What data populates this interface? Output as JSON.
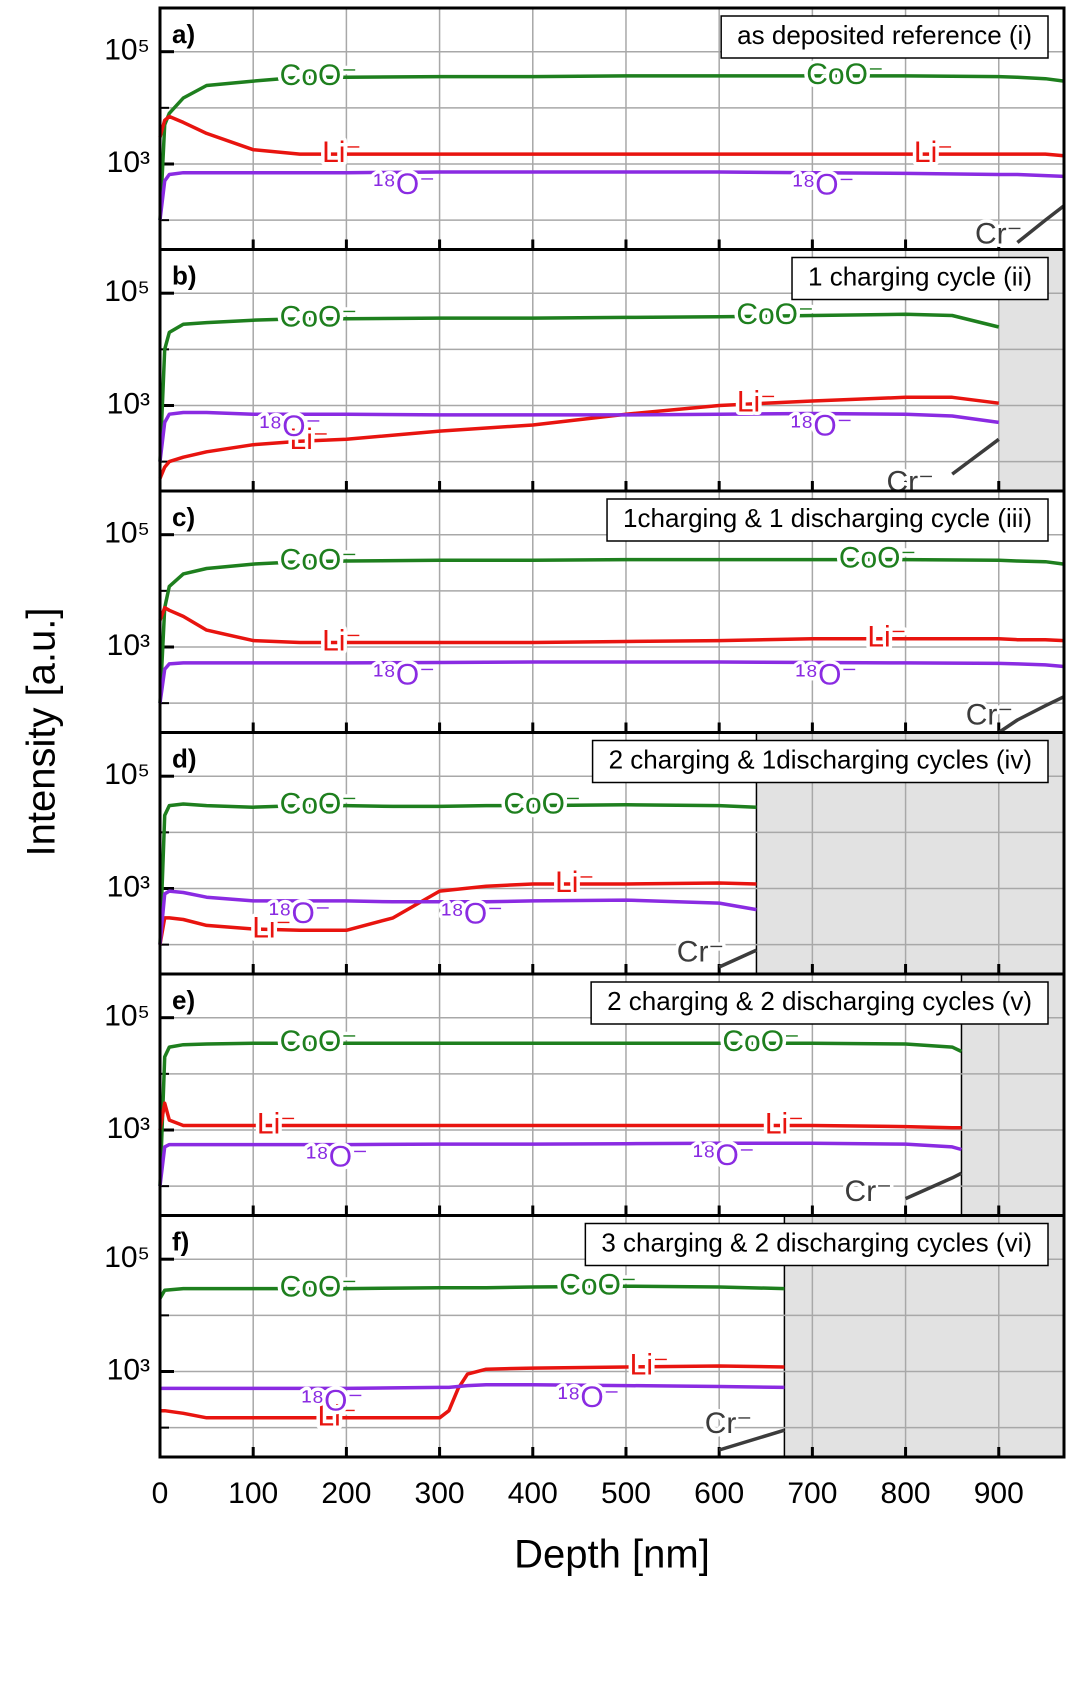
{
  "ylabel": "Intensity [a.u.]",
  "chart_data": [
    {
      "type": "line",
      "label": "a)",
      "title": "as deposited reference (i)",
      "xlim": [
        0,
        970
      ],
      "xticks": [
        0,
        100,
        200,
        300,
        400,
        500,
        600,
        700,
        800,
        900
      ],
      "ylim": [
        30,
        600000
      ],
      "yticks": [
        {
          "value": 1000,
          "label": "10³"
        },
        {
          "value": 100000,
          "label": "10⁵"
        }
      ],
      "minor_yticks": [
        100,
        10000
      ],
      "log_y": true,
      "grid": true,
      "shaded_from": null,
      "x": [
        0,
        5,
        10,
        25,
        50,
        100,
        150,
        200,
        300,
        400,
        500,
        600,
        700,
        800,
        900,
        920,
        950,
        970
      ],
      "series": [
        {
          "name": "CoO⁻",
          "color": "#1e7f1e",
          "values": [
            100,
            5000,
            8000,
            15000,
            25000,
            30000,
            35000,
            35000,
            36000,
            36000,
            37000,
            37000,
            37000,
            37000,
            36000,
            35000,
            33000,
            30000
          ]
        },
        {
          "name": "Li⁻",
          "color": "#e8140f",
          "values": [
            3000,
            6000,
            7000,
            5500,
            3500,
            1800,
            1500,
            1500,
            1500,
            1500,
            1500,
            1500,
            1500,
            1500,
            1500,
            1500,
            1500,
            1400
          ]
        },
        {
          "name": "¹⁸O⁻",
          "color": "#8a2be2",
          "values": [
            100,
            500,
            650,
            700,
            700,
            700,
            700,
            700,
            720,
            720,
            720,
            720,
            700,
            680,
            650,
            650,
            620,
            600
          ]
        },
        {
          "name": "Cr⁻",
          "color": "#3c3c3c",
          "values": [
            null,
            null,
            null,
            null,
            null,
            null,
            null,
            null,
            null,
            null,
            null,
            null,
            null,
            null,
            null,
            40,
            100,
            180
          ]
        }
      ]
    },
    {
      "type": "line",
      "label": "b)",
      "title": "1 charging cycle (ii)",
      "xlim": [
        0,
        970
      ],
      "xticks": [
        0,
        100,
        200,
        300,
        400,
        500,
        600,
        700,
        800,
        900
      ],
      "ylim": [
        30,
        600000
      ],
      "yticks": [
        {
          "value": 1000,
          "label": "10³"
        },
        {
          "value": 100000,
          "label": "10⁵"
        }
      ],
      "minor_yticks": [
        100,
        10000
      ],
      "log_y": true,
      "grid": true,
      "shaded_from": 900,
      "x": [
        0,
        5,
        10,
        25,
        50,
        100,
        150,
        200,
        300,
        400,
        500,
        600,
        700,
        800,
        850,
        900
      ],
      "series": [
        {
          "name": "CoO⁻",
          "color": "#1e7f1e",
          "values": [
            100,
            10000,
            20000,
            28000,
            30000,
            33000,
            35000,
            35000,
            36000,
            36000,
            37000,
            38000,
            40000,
            42000,
            40000,
            25000
          ]
        },
        {
          "name": "Li⁻",
          "color": "#e8140f",
          "values": [
            50,
            80,
            100,
            120,
            150,
            200,
            230,
            250,
            350,
            450,
            700,
            1000,
            1200,
            1400,
            1400,
            1100
          ]
        },
        {
          "name": "¹⁸O⁻",
          "color": "#8a2be2",
          "values": [
            100,
            500,
            700,
            750,
            750,
            700,
            700,
            700,
            680,
            680,
            680,
            700,
            720,
            700,
            650,
            500
          ]
        },
        {
          "name": "Cr⁻",
          "color": "#3c3c3c",
          "values": [
            null,
            null,
            null,
            null,
            null,
            null,
            null,
            null,
            null,
            null,
            null,
            null,
            null,
            null,
            60,
            250
          ]
        }
      ]
    },
    {
      "type": "line",
      "label": "c)",
      "title": "1charging & 1 discharging cycle (iii)",
      "xlim": [
        0,
        970
      ],
      "xticks": [
        0,
        100,
        200,
        300,
        400,
        500,
        600,
        700,
        800,
        900
      ],
      "ylim": [
        30,
        600000
      ],
      "yticks": [
        {
          "value": 1000,
          "label": "10³"
        },
        {
          "value": 100000,
          "label": "10⁵"
        }
      ],
      "minor_yticks": [
        100,
        10000
      ],
      "log_y": true,
      "grid": true,
      "shaded_from": null,
      "x": [
        0,
        5,
        10,
        25,
        50,
        100,
        150,
        200,
        300,
        400,
        500,
        600,
        700,
        800,
        900,
        920,
        950,
        970
      ],
      "series": [
        {
          "name": "CoO⁻",
          "color": "#1e7f1e",
          "values": [
            100,
            5000,
            12000,
            20000,
            25000,
            30000,
            33000,
            34000,
            35000,
            35000,
            36000,
            36000,
            36000,
            36000,
            35000,
            34000,
            33000,
            30000
          ]
        },
        {
          "name": "Li⁻",
          "color": "#e8140f",
          "values": [
            3000,
            5000,
            4500,
            3500,
            2000,
            1300,
            1200,
            1200,
            1200,
            1200,
            1250,
            1300,
            1400,
            1400,
            1400,
            1350,
            1350,
            1300
          ]
        },
        {
          "name": "¹⁸O⁻",
          "color": "#8a2be2",
          "values": [
            100,
            400,
            500,
            520,
            520,
            520,
            520,
            520,
            530,
            540,
            540,
            540,
            530,
            520,
            510,
            500,
            480,
            450
          ]
        },
        {
          "name": "Cr⁻",
          "color": "#3c3c3c",
          "values": [
            null,
            null,
            null,
            null,
            null,
            null,
            null,
            null,
            null,
            null,
            null,
            null,
            null,
            null,
            30,
            50,
            90,
            130
          ]
        }
      ]
    },
    {
      "type": "line",
      "label": "d)",
      "title": "2 charging & 1discharging cycles (iv)",
      "xlim": [
        0,
        970
      ],
      "xticks": [
        0,
        100,
        200,
        300,
        400,
        500,
        600,
        700,
        800,
        900
      ],
      "ylim": [
        30,
        600000
      ],
      "yticks": [
        {
          "value": 1000,
          "label": "10³"
        },
        {
          "value": 100000,
          "label": "10⁵"
        }
      ],
      "minor_yticks": [
        100,
        10000
      ],
      "log_y": true,
      "grid": true,
      "shaded_from": 640,
      "x": [
        0,
        5,
        10,
        25,
        50,
        100,
        150,
        200,
        250,
        300,
        350,
        400,
        500,
        600,
        640
      ],
      "series": [
        {
          "name": "CoO⁻",
          "color": "#1e7f1e",
          "values": [
            100,
            20000,
            30000,
            32000,
            30000,
            28000,
            30000,
            30000,
            29000,
            29000,
            30000,
            30000,
            31000,
            30000,
            28000
          ]
        },
        {
          "name": "Li⁻",
          "color": "#e8140f",
          "values": [
            100,
            300,
            300,
            280,
            220,
            190,
            180,
            180,
            300,
            900,
            1100,
            1200,
            1200,
            1250,
            1200
          ]
        },
        {
          "name": "¹⁸O⁻",
          "color": "#8a2be2",
          "values": [
            100,
            800,
            900,
            850,
            700,
            600,
            600,
            600,
            580,
            580,
            580,
            600,
            620,
            550,
            420
          ]
        },
        {
          "name": "Cr⁻",
          "color": "#3c3c3c",
          "values": [
            null,
            null,
            null,
            null,
            null,
            null,
            null,
            null,
            null,
            null,
            null,
            null,
            null,
            40,
            80
          ]
        }
      ]
    },
    {
      "type": "line",
      "label": "e)",
      "title": "2 charging & 2 discharging cycles (v)",
      "xlim": [
        0,
        970
      ],
      "xticks": [
        0,
        100,
        200,
        300,
        400,
        500,
        600,
        700,
        800,
        900
      ],
      "ylim": [
        30,
        600000
      ],
      "yticks": [
        {
          "value": 1000,
          "label": "10³"
        },
        {
          "value": 100000,
          "label": "10⁵"
        }
      ],
      "minor_yticks": [
        100,
        10000
      ],
      "log_y": true,
      "grid": true,
      "shaded_from": 860,
      "x": [
        0,
        5,
        10,
        25,
        50,
        100,
        200,
        300,
        400,
        500,
        600,
        700,
        800,
        850,
        860
      ],
      "series": [
        {
          "name": "CoO⁻",
          "color": "#1e7f1e",
          "values": [
            100,
            20000,
            30000,
            33000,
            34000,
            35000,
            35000,
            35000,
            35000,
            35000,
            35000,
            35000,
            34000,
            30000,
            25000
          ]
        },
        {
          "name": "Li⁻",
          "color": "#e8140f",
          "values": [
            1000,
            3000,
            1500,
            1200,
            1200,
            1200,
            1200,
            1200,
            1200,
            1200,
            1200,
            1200,
            1150,
            1100,
            1100
          ]
        },
        {
          "name": "¹⁸O⁻",
          "color": "#8a2be2",
          "values": [
            100,
            500,
            550,
            550,
            550,
            550,
            550,
            560,
            560,
            570,
            580,
            580,
            560,
            500,
            450
          ]
        },
        {
          "name": "Cr⁻",
          "color": "#3c3c3c",
          "values": [
            null,
            null,
            null,
            null,
            null,
            null,
            null,
            null,
            null,
            null,
            null,
            null,
            60,
            140,
            170
          ]
        }
      ]
    },
    {
      "type": "line",
      "label": "f)",
      "title": "3 charging & 2 discharging cycles (vi)",
      "xlim": [
        0,
        970
      ],
      "xticks": [
        0,
        100,
        200,
        300,
        400,
        500,
        600,
        700,
        800,
        900
      ],
      "xlabel": "Depth [nm]",
      "ylim": [
        30,
        600000
      ],
      "yticks": [
        {
          "value": 1000,
          "label": "10³"
        },
        {
          "value": 100000,
          "label": "10⁵"
        }
      ],
      "minor_yticks": [
        100,
        10000
      ],
      "log_y": true,
      "grid": true,
      "shaded_from": 670,
      "x": [
        0,
        5,
        25,
        50,
        100,
        200,
        300,
        310,
        320,
        330,
        350,
        400,
        500,
        600,
        670
      ],
      "series": [
        {
          "name": "CoO⁻",
          "color": "#1e7f1e",
          "values": [
            20000,
            28000,
            30000,
            30000,
            30000,
            30000,
            31000,
            31000,
            31000,
            31000,
            31000,
            32000,
            33000,
            32000,
            30000
          ]
        },
        {
          "name": "Li⁻",
          "color": "#e8140f",
          "values": [
            200,
            200,
            180,
            150,
            150,
            150,
            150,
            200,
            500,
            900,
            1100,
            1150,
            1200,
            1250,
            1200
          ]
        },
        {
          "name": "¹⁸O⁻",
          "color": "#8a2be2",
          "values": [
            500,
            500,
            500,
            500,
            500,
            500,
            520,
            520,
            540,
            560,
            580,
            580,
            560,
            540,
            520
          ]
        },
        {
          "name": "Cr⁻",
          "color": "#3c3c3c",
          "values": [
            null,
            null,
            null,
            null,
            null,
            null,
            null,
            null,
            null,
            null,
            null,
            null,
            null,
            40,
            90
          ]
        }
      ]
    }
  ]
}
